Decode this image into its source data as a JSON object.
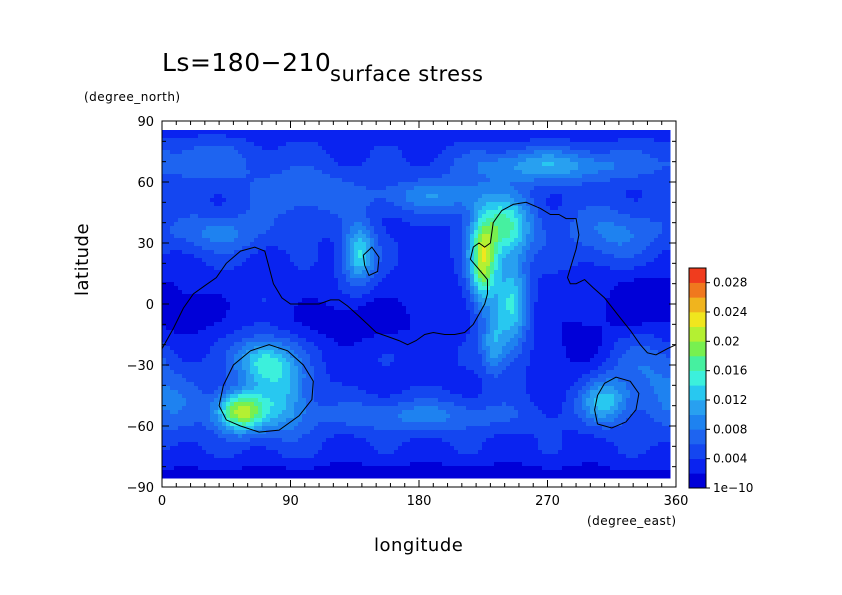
{
  "chart_data": {
    "type": "heatmap",
    "title": "Ls=180−210",
    "subtitle": "surface stress",
    "xlabel": "longitude",
    "ylabel": "latitude",
    "x_unit": "(degree_east)",
    "y_unit": "(degree_north)",
    "xlim": [
      0,
      360
    ],
    "ylim": [
      -90,
      90
    ],
    "x_ticks": [
      "0",
      "90",
      "180",
      "270",
      "360"
    ],
    "y_ticks": [
      "90",
      "60",
      "30",
      "0",
      "−30",
      "−60",
      "−90"
    ],
    "x_tick_values": [
      0,
      90,
      180,
      270,
      360
    ],
    "y_tick_values": [
      90,
      60,
      30,
      0,
      -30,
      -60,
      -90
    ],
    "colorbar": {
      "range": [
        0,
        0.03
      ],
      "tick_labels": [
        "1e−10",
        "0.004",
        "0.008",
        "0.012",
        "0.016",
        "0.02",
        "0.024",
        "0.028"
      ],
      "tick_values": [
        0,
        0.004,
        0.008,
        0.012,
        0.016,
        0.02,
        0.024,
        0.028
      ],
      "levels": 15,
      "colors": [
        "#0000d8",
        "#0a23f0",
        "#1446f0",
        "#1e64f0",
        "#1e82f0",
        "#28a0f0",
        "#28c8f0",
        "#3cf0dc",
        "#46f0a0",
        "#78f050",
        "#b4f032",
        "#f0e61e",
        "#f0b41e",
        "#f0781e",
        "#f03c1e"
      ]
    },
    "background_level": 0.0035,
    "hotspots": [
      {
        "lon": 55,
        "lat": -53,
        "peak": 0.017,
        "spread_lon": 12,
        "spread_lat": 7
      },
      {
        "lon": 70,
        "lat": -28,
        "peak": 0.01,
        "spread_lon": 14,
        "spread_lat": 8
      },
      {
        "lon": 85,
        "lat": -45,
        "peak": 0.008,
        "spread_lon": 14,
        "spread_lat": 14
      },
      {
        "lon": 138,
        "lat": 25,
        "peak": 0.011,
        "spread_lon": 8,
        "spread_lat": 10
      },
      {
        "lon": 225,
        "lat": 20,
        "peak": 0.0165,
        "spread_lon": 7,
        "spread_lat": 14
      },
      {
        "lon": 240,
        "lat": 38,
        "peak": 0.012,
        "spread_lon": 14,
        "spread_lat": 10
      },
      {
        "lon": 245,
        "lat": 0,
        "peak": 0.01,
        "spread_lon": 8,
        "spread_lat": 18
      },
      {
        "lon": 232,
        "lat": -20,
        "peak": 0.007,
        "spread_lon": 6,
        "spread_lat": 10
      },
      {
        "lon": 310,
        "lat": -48,
        "peak": 0.009,
        "spread_lon": 12,
        "spread_lat": 8
      },
      {
        "lon": 195,
        "lat": 53,
        "peak": 0.006,
        "spread_lon": 30,
        "spread_lat": 6
      },
      {
        "lon": 270,
        "lat": 68,
        "peak": 0.008,
        "spread_lon": 40,
        "spread_lat": 6
      },
      {
        "lon": 25,
        "lat": 70,
        "peak": 0.004,
        "spread_lon": 30,
        "spread_lat": 8
      },
      {
        "lon": 40,
        "lat": 35,
        "peak": 0.005,
        "spread_lon": 25,
        "spread_lat": 7
      },
      {
        "lon": 315,
        "lat": 35,
        "peak": 0.005,
        "spread_lon": 25,
        "spread_lat": 10
      },
      {
        "lon": 180,
        "lat": -55,
        "peak": 0.005,
        "spread_lon": 50,
        "spread_lat": 6
      },
      {
        "lon": 100,
        "lat": 55,
        "peak": 0.004,
        "spread_lon": 30,
        "spread_lat": 10
      },
      {
        "lon": 340,
        "lat": -30,
        "peak": 0.004,
        "spread_lon": 20,
        "spread_lat": 12
      },
      {
        "lon": 5,
        "lat": -50,
        "peak": 0.004,
        "spread_lon": 20,
        "spread_lat": 12
      }
    ],
    "lows": [
      {
        "lon": 135,
        "lat": -8,
        "depth": 0.003,
        "spread_lon": 35,
        "spread_lat": 8
      },
      {
        "lon": 340,
        "lat": 0,
        "depth": 0.003,
        "spread_lon": 25,
        "spread_lat": 12
      },
      {
        "lon": 20,
        "lat": -5,
        "depth": 0.002,
        "spread_lon": 18,
        "spread_lat": 10
      },
      {
        "lon": 175,
        "lat": -85,
        "depth": 0.003,
        "spread_lon": 180,
        "spread_lat": 5
      },
      {
        "lon": 175,
        "lat": 88,
        "depth": 0.002,
        "spread_lon": 180,
        "spread_lat": 4
      },
      {
        "lon": 290,
        "lat": -20,
        "depth": 0.002,
        "spread_lon": 20,
        "spread_lat": 12
      }
    ],
    "contours": [
      {
        "name": "topography-line",
        "points": [
          [
            0,
            -22
          ],
          [
            8,
            -12
          ],
          [
            15,
            -2
          ],
          [
            22,
            5
          ],
          [
            30,
            9
          ],
          [
            38,
            13
          ],
          [
            45,
            20
          ],
          [
            55,
            26
          ],
          [
            65,
            28
          ],
          [
            72,
            26
          ],
          [
            75,
            18
          ],
          [
            78,
            10
          ],
          [
            84,
            3
          ],
          [
            90,
            0
          ],
          [
            100,
            0
          ],
          [
            110,
            0
          ],
          [
            118,
            2
          ],
          [
            124,
            2
          ],
          [
            130,
            -1
          ],
          [
            138,
            -6
          ],
          [
            144,
            -10
          ],
          [
            150,
            -14
          ],
          [
            158,
            -16
          ],
          [
            166,
            -18
          ],
          [
            172,
            -20
          ],
          [
            178,
            -18
          ],
          [
            184,
            -15
          ],
          [
            190,
            -14
          ],
          [
            198,
            -15
          ],
          [
            205,
            -15
          ],
          [
            212,
            -14
          ],
          [
            218,
            -10
          ],
          [
            222,
            -5
          ],
          [
            226,
            0
          ],
          [
            228,
            5
          ],
          [
            228,
            12
          ],
          [
            222,
            17
          ],
          [
            216,
            22
          ],
          [
            218,
            28
          ],
          [
            222,
            30
          ],
          [
            226,
            28
          ],
          [
            230,
            30
          ],
          [
            232,
            40
          ],
          [
            238,
            46
          ],
          [
            246,
            49
          ],
          [
            255,
            50
          ],
          [
            265,
            47
          ],
          [
            272,
            44
          ],
          [
            278,
            44
          ],
          [
            283,
            42
          ],
          [
            290,
            42
          ],
          [
            292,
            34
          ],
          [
            290,
            27
          ],
          [
            287,
            20
          ],
          [
            284,
            13
          ],
          [
            286,
            10
          ],
          [
            290,
            10
          ],
          [
            296,
            12
          ],
          [
            302,
            8
          ],
          [
            310,
            3
          ],
          [
            320,
            -6
          ],
          [
            328,
            -13
          ],
          [
            335,
            -20
          ],
          [
            340,
            -24
          ],
          [
            346,
            -25
          ],
          [
            354,
            -22
          ],
          [
            360,
            -20
          ]
        ]
      },
      {
        "name": "hellas-contour",
        "points": [
          [
            55,
            -60
          ],
          [
            68,
            -63
          ],
          [
            82,
            -62
          ],
          [
            96,
            -55
          ],
          [
            105,
            -47
          ],
          [
            106,
            -38
          ],
          [
            99,
            -30
          ],
          [
            88,
            -23
          ],
          [
            75,
            -20
          ],
          [
            62,
            -23
          ],
          [
            50,
            -30
          ],
          [
            43,
            -40
          ],
          [
            40,
            -50
          ],
          [
            45,
            -57
          ],
          [
            55,
            -60
          ]
        ]
      },
      {
        "name": "argyre-contour",
        "points": [
          [
            305,
            -59
          ],
          [
            315,
            -61
          ],
          [
            325,
            -58
          ],
          [
            332,
            -52
          ],
          [
            334,
            -44
          ],
          [
            328,
            -38
          ],
          [
            318,
            -36
          ],
          [
            310,
            -39
          ],
          [
            305,
            -45
          ],
          [
            303,
            -52
          ],
          [
            305,
            -59
          ]
        ]
      },
      {
        "name": "elysium-contour",
        "points": [
          [
            141,
            24
          ],
          [
            147,
            28
          ],
          [
            152,
            23
          ],
          [
            151,
            16
          ],
          [
            145,
            14
          ],
          [
            142,
            19
          ],
          [
            141,
            24
          ]
        ]
      }
    ]
  }
}
